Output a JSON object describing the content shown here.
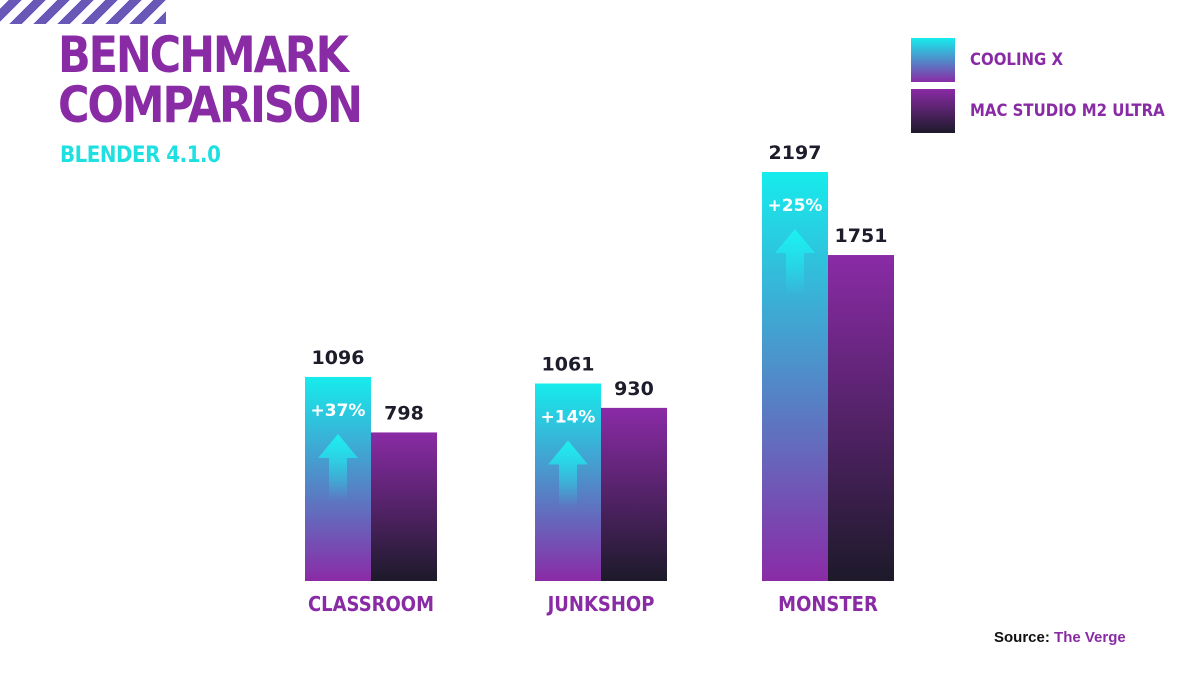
{
  "header": {
    "title_lines": [
      "BENCHMARK",
      "COMPARISON"
    ],
    "subtitle": "BLENDER 4.1.0"
  },
  "legend": {
    "placement": "top-right",
    "items": [
      {
        "label": "COOLING X"
      },
      {
        "label": "MAC STUDIO M2 ULTRA"
      }
    ]
  },
  "source": {
    "prefix": "Source:",
    "name": "The Verge"
  },
  "colors": {
    "title": "#8a2ba6",
    "subtitle": "#1ee0e0",
    "cooling_x_top": "#16ecec",
    "cooling_x_bottom": "#8a2ba6",
    "mac_top": "#8a2ba6",
    "mac_bottom": "#1d1a2a",
    "value_labels": "#1c1c2a",
    "category_labels": "#8a2ba6",
    "stripes": "#6a58b8"
  },
  "chart_data": {
    "type": "bar",
    "categories": [
      "CLASSROOM",
      "JUNKSHOP",
      "MONSTER"
    ],
    "series": [
      {
        "name": "COOLING X",
        "values": [
          1096,
          1061,
          2197
        ]
      },
      {
        "name": "MAC STUDIO M2 ULTRA",
        "values": [
          798,
          930,
          1751
        ]
      }
    ],
    "value_labels": [
      [
        "1096",
        "1061",
        "2197"
      ],
      [
        "798",
        "930",
        "1751"
      ]
    ],
    "annotations": [
      "+37%",
      "+14%",
      "+25%"
    ],
    "ylim": [
      0,
      2197
    ],
    "grid": false,
    "xlabel": "",
    "ylabel": ""
  }
}
